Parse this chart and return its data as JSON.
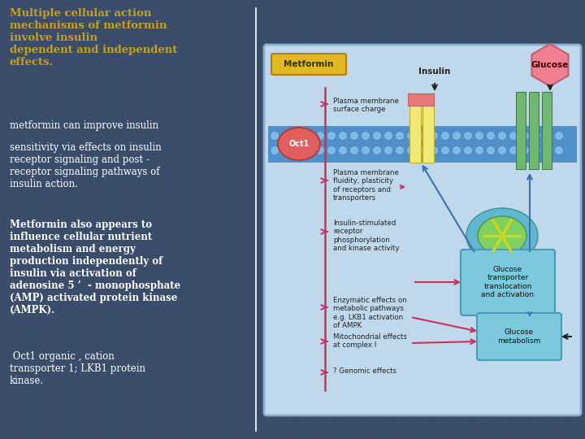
{
  "bg_color": "#3a4d6b",
  "title_text": "Multiple cellular action\nmechanisms of metformin\ninvolve insulin\ndependent and independent\neffects.",
  "title_color": "#c8a020",
  "body1": "metformin can improve insulin",
  "body2": "sensitivity via effects on insulin\nreceptor signaling and post -\nreceptor signaling pathways of\ninsulin action.",
  "body3": "Metformin also appears to\ninfluence cellular nutrient\nmetabolism and energy\nproduction independently of\ninsulin via activation of\nadenosine 5 ’  - monophosphate\n(AMP) activated protein kinase\n(AMPK).",
  "body4": " Oct1 organic , cation\ntransporter 1; LKB1 protein\nkinase.",
  "rp_bg": "#c0d8ec",
  "rp_border": "#8ab0cc",
  "mem_color": "#5090c8",
  "mem_dot_color": "#80b8e8",
  "oct1_color": "#e06060",
  "insulin_rec_yellow": "#f0e878",
  "insulin_rec_pink": "#e87878",
  "glut_green": "#70b870",
  "vesicle_outer": "#60b8d0",
  "vesicle_inner": "#80d060",
  "metformin_box_bg": "#e0b820",
  "glucose_box_bg": "#f08090",
  "gt_box_bg": "#7cc8dc",
  "gm_box_bg": "#7cc8dc",
  "arrow_pink": "#cc3060",
  "arrow_blue": "#4070b0",
  "arrow_black": "#222222",
  "label_color": "#222222"
}
